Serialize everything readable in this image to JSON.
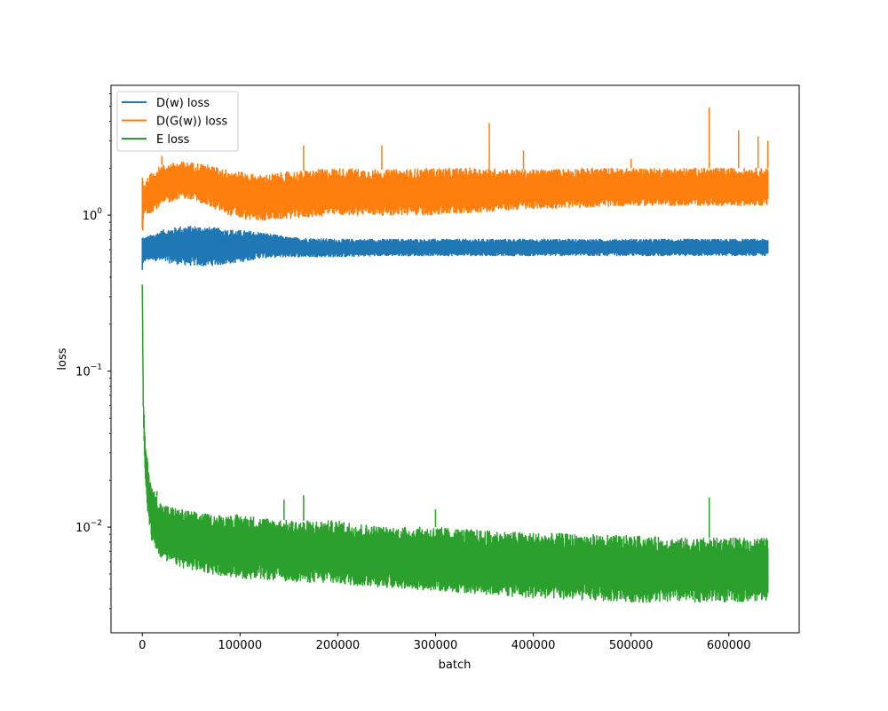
{
  "chart_data": {
    "type": "line",
    "title": "",
    "xlabel": "batch",
    "ylabel": "loss",
    "yscale": "log",
    "xlim": [
      -32000,
      672000
    ],
    "ylim": [
      0.0021,
      6.8
    ],
    "xticks": [
      0,
      100000,
      200000,
      300000,
      400000,
      500000,
      600000
    ],
    "xtick_labels": [
      "0",
      "100000",
      "200000",
      "300000",
      "400000",
      "500000",
      "600000"
    ],
    "yticks": [
      0.01,
      0.1,
      1
    ],
    "ytick_labels": [
      "10",
      "10",
      "10"
    ],
    "ytick_exponents": [
      "−2",
      "−1",
      "0"
    ],
    "grid": false,
    "legend_position": "top-left",
    "series": [
      {
        "name": "D(w) loss",
        "color": "#1f77b4",
        "x": [
          0,
          2000,
          10000,
          20000,
          40000,
          60000,
          80000,
          100000,
          120000,
          150000,
          200000,
          250000,
          300000,
          350000,
          400000,
          450000,
          500000,
          550000,
          600000,
          640000
        ],
        "y_low": [
          0.43,
          0.5,
          0.52,
          0.5,
          0.48,
          0.47,
          0.48,
          0.5,
          0.53,
          0.54,
          0.54,
          0.55,
          0.55,
          0.55,
          0.55,
          0.55,
          0.55,
          0.55,
          0.55,
          0.55
        ],
        "y_high": [
          0.75,
          0.72,
          0.75,
          0.8,
          0.85,
          0.85,
          0.82,
          0.8,
          0.78,
          0.72,
          0.7,
          0.7,
          0.7,
          0.7,
          0.7,
          0.7,
          0.7,
          0.7,
          0.7,
          0.7
        ]
      },
      {
        "name": "D(G(w)) loss",
        "color": "#ff7f0e",
        "x": [
          0,
          2000,
          10000,
          20000,
          40000,
          60000,
          80000,
          100000,
          120000,
          150000,
          200000,
          250000,
          300000,
          350000,
          400000,
          450000,
          500000,
          550000,
          600000,
          640000
        ],
        "y_low": [
          0.7,
          1.0,
          1.05,
          1.15,
          1.3,
          1.2,
          1.05,
          0.95,
          0.92,
          0.95,
          1.0,
          1.0,
          1.0,
          1.05,
          1.1,
          1.12,
          1.15,
          1.15,
          1.15,
          1.15
        ],
        "y_high": [
          1.9,
          1.6,
          1.9,
          2.1,
          2.2,
          2.15,
          2.0,
          1.9,
          1.8,
          1.9,
          2.0,
          1.95,
          2.0,
          2.0,
          1.95,
          2.0,
          2.0,
          2.0,
          2.0,
          2.0
        ],
        "spikes": [
          [
            20000,
            2.4
          ],
          [
            165000,
            2.8
          ],
          [
            245000,
            2.8
          ],
          [
            355000,
            3.9
          ],
          [
            390000,
            2.6
          ],
          [
            500000,
            2.3
          ],
          [
            580000,
            4.9
          ],
          [
            610000,
            3.5
          ],
          [
            630000,
            3.2
          ],
          [
            640000,
            3.0
          ]
        ]
      },
      {
        "name": "E loss",
        "color": "#2ca02c",
        "x": [
          0,
          1000,
          3000,
          6000,
          10000,
          20000,
          40000,
          70000,
          100000,
          150000,
          200000,
          250000,
          300000,
          350000,
          400000,
          450000,
          500000,
          550000,
          600000,
          640000
        ],
        "y_low": [
          0.35,
          0.05,
          0.02,
          0.011,
          0.008,
          0.0062,
          0.0055,
          0.005,
          0.0047,
          0.0045,
          0.0043,
          0.0041,
          0.0039,
          0.0037,
          0.0035,
          0.0034,
          0.0033,
          0.0033,
          0.0033,
          0.0034
        ],
        "y_high": [
          0.36,
          0.07,
          0.035,
          0.025,
          0.018,
          0.014,
          0.013,
          0.012,
          0.012,
          0.011,
          0.011,
          0.01,
          0.01,
          0.0095,
          0.0092,
          0.009,
          0.0088,
          0.0085,
          0.0085,
          0.0085
        ],
        "spikes": [
          [
            15000,
            0.017
          ],
          [
            145000,
            0.015
          ],
          [
            165000,
            0.016
          ],
          [
            300000,
            0.013
          ],
          [
            580000,
            0.0155
          ]
        ]
      }
    ]
  }
}
